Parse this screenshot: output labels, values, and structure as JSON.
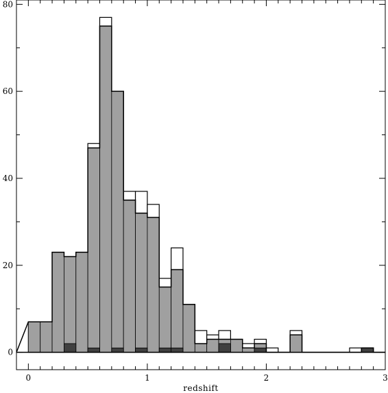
{
  "chart_data": {
    "type": "bar",
    "subtype": "step-histogram",
    "title": "",
    "xlabel": "redshift",
    "ylabel": "",
    "xlim": [
      -0.1,
      3.0
    ],
    "ylim": [
      -4,
      81
    ],
    "bin_width": 0.1,
    "x_ticks": [
      0,
      1,
      2,
      3
    ],
    "y_ticks": [
      0,
      20,
      40,
      60,
      80
    ],
    "x_tick_labels": [
      "0",
      "1",
      "2",
      "3"
    ],
    "y_tick_labels": [
      "0",
      "20",
      "40",
      "60",
      "80"
    ],
    "grid": false,
    "legend": "none",
    "colors": {
      "outline": "#000000",
      "gray_fill": "#a0a0a0",
      "dark_fill": "#404040",
      "background": "#ffffff"
    },
    "bin_starts": [
      0.0,
      0.1,
      0.2,
      0.3,
      0.4,
      0.5,
      0.6,
      0.7,
      0.8,
      0.9,
      1.0,
      1.1,
      1.2,
      1.3,
      1.4,
      1.5,
      1.6,
      1.7,
      1.8,
      1.9,
      2.0,
      2.1,
      2.2,
      2.3,
      2.4,
      2.5,
      2.6,
      2.7,
      2.8,
      2.9
    ],
    "series": [
      {
        "style": "outline",
        "values": [
          7,
          7,
          23,
          22,
          23,
          48,
          77,
          60,
          37,
          37,
          34,
          17,
          24,
          11,
          5,
          4,
          5,
          3,
          2,
          3,
          1,
          0,
          5,
          0,
          0,
          0,
          0,
          1,
          1,
          0
        ]
      },
      {
        "style": "gray",
        "values": [
          7,
          7,
          23,
          22,
          23,
          47,
          75,
          60,
          35,
          32,
          31,
          15,
          19,
          11,
          2,
          3,
          3,
          3,
          1,
          2,
          0,
          0,
          4,
          0,
          0,
          0,
          0,
          0,
          1,
          0
        ]
      },
      {
        "style": "dark",
        "values": [
          0,
          0,
          0,
          2,
          0,
          1,
          0,
          1,
          0,
          1,
          0,
          1,
          1,
          0,
          0,
          0,
          2,
          0,
          0,
          1,
          0,
          0,
          0,
          0,
          0,
          0,
          0,
          0,
          1,
          0
        ]
      }
    ]
  }
}
